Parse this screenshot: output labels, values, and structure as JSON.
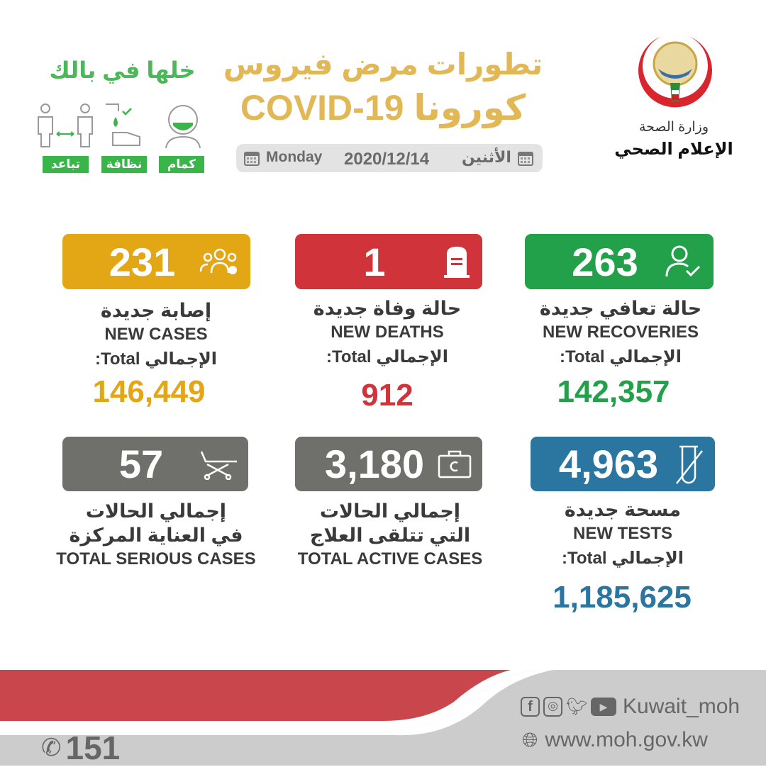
{
  "header": {
    "title_line1": "تطورات مرض فيروس",
    "title_line2": "كورونا COVID-19",
    "day_en": "Monday",
    "date": "2020/12/14",
    "day_ar": "الأثنين",
    "ministry": "وزارة الصحة",
    "department": "الإعلام الصحي",
    "slogan": "خلها في بالك",
    "tips": [
      "كمام",
      "نظافة",
      "تباعد"
    ]
  },
  "colors": {
    "cases": "#e3a615",
    "deaths": "#d0343a",
    "recoveries": "#22a04a",
    "gray": "#6f6f6b",
    "tests": "#2a76a0",
    "footer_red": "#c9474c",
    "footer_gray": "#cccccc"
  },
  "stats": {
    "cases": {
      "value": "231",
      "ar": "إصابة جديدة",
      "en": "NEW CASES",
      "total_label": "الإجمالي Total:",
      "total": "146,449",
      "icon": "people-virus-icon"
    },
    "deaths": {
      "value": "1",
      "ar": "حالة وفاة جديدة",
      "en": "NEW DEATHS",
      "total_label": "الإجمالي Total:",
      "total": "912",
      "icon": "tombstone-icon"
    },
    "recoveries": {
      "value": "263",
      "ar": "حالة تعافي جديدة",
      "en": "NEW RECOVERIES",
      "total_label": "الإجمالي Total:",
      "total": "142,357",
      "icon": "user-check-icon"
    },
    "serious": {
      "value": "57",
      "ar1": "إجمالي الحالات",
      "ar2": "في العناية المركزة",
      "en": "TOTAL SERIOUS CASES",
      "icon": "stretcher-icon"
    },
    "active": {
      "value": "3,180",
      "ar1": "إجمالي الحالات",
      "ar2": "التي تتلقى العلاج",
      "en": "TOTAL ACTIVE CASES",
      "icon": "medical-bag-icon"
    },
    "tests": {
      "value": "4,963",
      "ar": "مسحة  جديدة",
      "en": "NEW TESTS",
      "total_label": "الإجمالي Total:",
      "total": "1,185,625",
      "icon": "test-tube-icon"
    }
  },
  "footer": {
    "hotline": "151",
    "social": "Kuwait_moh",
    "website": "www.moh.gov.kw"
  }
}
